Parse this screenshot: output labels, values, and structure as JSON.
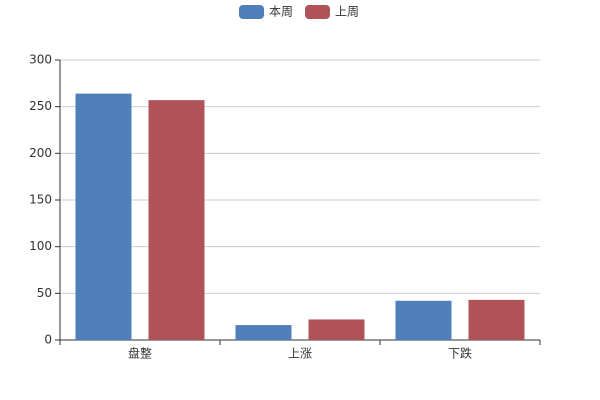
{
  "chart_data": {
    "type": "bar",
    "categories": [
      "盘整",
      "上涨",
      "下跌"
    ],
    "series": [
      {
        "name": "本周",
        "color": "#4e7fba",
        "values": [
          264,
          16,
          42
        ]
      },
      {
        "name": "上周",
        "color": "#b05358",
        "values": [
          257,
          22,
          43
        ]
      }
    ],
    "ylim": [
      0,
      300
    ],
    "yticks": [
      0,
      50,
      100,
      150,
      200,
      250,
      300
    ],
    "grid": true,
    "legend": "top"
  }
}
